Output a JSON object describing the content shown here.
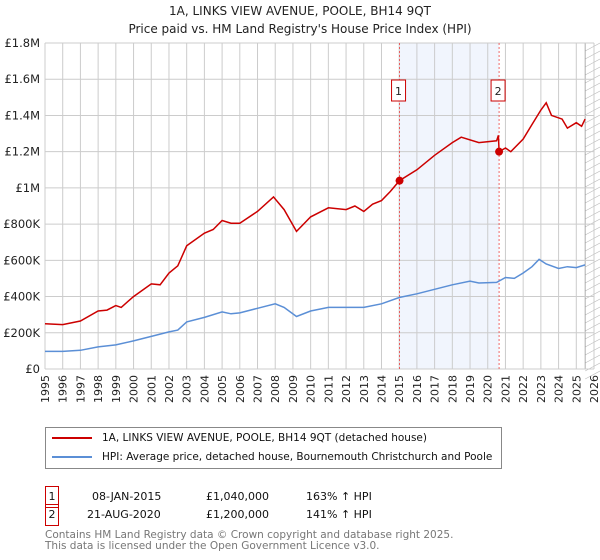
{
  "chart_data": {
    "type": "line",
    "title": "1A, LINKS VIEW AVENUE, POOLE, BH14 9QT",
    "subtitle": "Price paid vs. HM Land Registry's House Price Index (HPI)",
    "xlim": [
      1995,
      2026
    ],
    "ylim": [
      0,
      1800000
    ],
    "y_ticks": [
      {
        "v": 0,
        "label": "£0"
      },
      {
        "v": 200000,
        "label": "£200K"
      },
      {
        "v": 400000,
        "label": "£400K"
      },
      {
        "v": 600000,
        "label": "£600K"
      },
      {
        "v": 800000,
        "label": "£800K"
      },
      {
        "v": 1000000,
        "label": "£1M"
      },
      {
        "v": 1200000,
        "label": "£1.2M"
      },
      {
        "v": 1400000,
        "label": "£1.4M"
      },
      {
        "v": 1600000,
        "label": "£1.6M"
      },
      {
        "v": 1800000,
        "label": "£1.8M"
      }
    ],
    "x_ticks": [
      "1995",
      "1996",
      "1997",
      "1998",
      "1999",
      "2000",
      "2001",
      "2002",
      "2003",
      "2004",
      "2005",
      "2006",
      "2007",
      "2008",
      "2009",
      "2010",
      "2011",
      "2012",
      "2013",
      "2014",
      "2015",
      "2016",
      "2017",
      "2018",
      "2019",
      "2020",
      "2021",
      "2022",
      "2023",
      "2024",
      "2025",
      "2026"
    ],
    "grid": true,
    "shaded_period": [
      2015.02,
      2020.64
    ],
    "forecast_hatch_from": 2025.5,
    "series": [
      {
        "name": "1A, LINKS VIEW AVENUE, POOLE, BH14 9QT (detached house)",
        "color": "#cc0000",
        "x": [
          1995,
          1996,
          1997,
          1998,
          1998.5,
          1999,
          1999.3,
          2000,
          2001,
          2001.5,
          2002,
          2002.5,
          2003,
          2004,
          2004.5,
          2005,
          2005.5,
          2006,
          2007,
          2007.9,
          2008.5,
          2009.2,
          2010,
          2011,
          2012,
          2012.5,
          2013,
          2013.5,
          2014,
          2014.5,
          2015.02,
          2016,
          2017,
          2018,
          2018.5,
          2019.5,
          2020.5,
          2020.6,
          2020.64,
          2021,
          2021.3,
          2022,
          2022.5,
          2023,
          2023.3,
          2023.6,
          2024.2,
          2024.5,
          2025,
          2025.3,
          2025.5
        ],
        "y": [
          250000,
          245000,
          265000,
          320000,
          325000,
          350000,
          340000,
          400000,
          470000,
          465000,
          530000,
          570000,
          680000,
          750000,
          770000,
          820000,
          805000,
          805000,
          870000,
          950000,
          880000,
          760000,
          840000,
          890000,
          880000,
          900000,
          870000,
          910000,
          930000,
          980000,
          1040000,
          1100000,
          1180000,
          1250000,
          1280000,
          1250000,
          1260000,
          1290000,
          1200000,
          1220000,
          1200000,
          1270000,
          1350000,
          1430000,
          1470000,
          1400000,
          1380000,
          1330000,
          1360000,
          1340000,
          1380000
        ]
      },
      {
        "name": "HPI: Average price, detached house, Bournemouth Christchurch and Poole",
        "color": "#5b8fd6",
        "x": [
          1995,
          1996,
          1997,
          1998,
          1999,
          2000,
          2001,
          2002,
          2002.5,
          2003,
          2004,
          2005,
          2005.5,
          2006,
          2007,
          2008,
          2008.5,
          2009.2,
          2010,
          2011,
          2012,
          2013,
          2014,
          2015,
          2016,
          2017,
          2018,
          2019,
          2019.5,
          2020.5,
          2021,
          2021.5,
          2022,
          2022.5,
          2022.9,
          2023.3,
          2024,
          2024.5,
          2025,
          2025.5
        ],
        "y": [
          97000,
          97000,
          103000,
          122000,
          133000,
          155000,
          180000,
          205000,
          215000,
          260000,
          285000,
          315000,
          305000,
          310000,
          335000,
          360000,
          340000,
          290000,
          320000,
          340000,
          340000,
          340000,
          360000,
          395000,
          415000,
          440000,
          465000,
          485000,
          475000,
          478000,
          505000,
          500000,
          530000,
          565000,
          605000,
          580000,
          555000,
          565000,
          560000,
          575000
        ]
      }
    ],
    "sales": [
      {
        "id": "1",
        "x": 2015.02,
        "y": 1040000,
        "date": "08-JAN-2015",
        "price": "£1,040,000",
        "hpi": "163% ↑ HPI"
      },
      {
        "id": "2",
        "x": 2020.64,
        "y": 1200000,
        "date": "21-AUG-2020",
        "price": "£1,200,000",
        "hpi": "141% ↑ HPI"
      }
    ]
  },
  "footer": {
    "line1": "Contains HM Land Registry data © Crown copyright and database right 2025.",
    "line2": "This data is licensed under the Open Government Licence v3.0."
  }
}
